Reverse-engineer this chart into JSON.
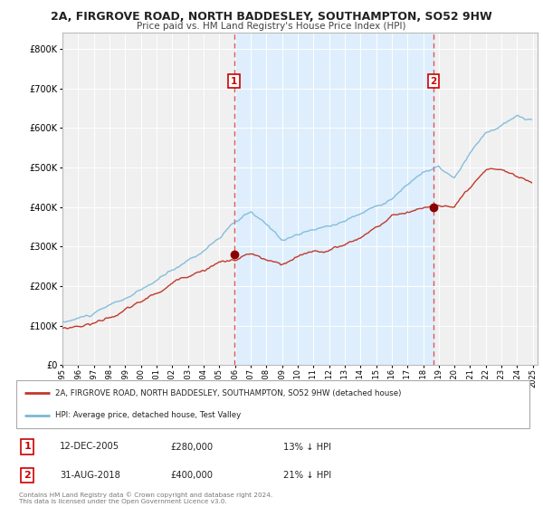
{
  "title": "2A, FIRGROVE ROAD, NORTH BADDESLEY, SOUTHAMPTON, SO52 9HW",
  "subtitle": "Price paid vs. HM Land Registry's House Price Index (HPI)",
  "x_start_year": 1995,
  "x_end_year": 2025,
  "y_ticks": [
    0,
    100000,
    200000,
    300000,
    400000,
    500000,
    600000,
    700000,
    800000
  ],
  "y_labels": [
    "£0",
    "£100K",
    "£200K",
    "£300K",
    "£400K",
    "£500K",
    "£600K",
    "£700K",
    "£800K"
  ],
  "ylim": [
    0,
    840000
  ],
  "hpi_color": "#7ab8d9",
  "price_color": "#c0392b",
  "marker_color": "#8b0000",
  "vline_color": "#e05555",
  "shade_color": "#ddeeff",
  "transaction1_date": 2005.95,
  "transaction1_price": 280000,
  "transaction1_label": "1",
  "transaction2_date": 2018.67,
  "transaction2_price": 400000,
  "transaction2_label": "2",
  "legend_line1": "2A, FIRGROVE ROAD, NORTH BADDESLEY, SOUTHAMPTON, SO52 9HW (detached house)",
  "legend_line2": "HPI: Average price, detached house, Test Valley",
  "info1_num": "1",
  "info1_date": "12-DEC-2005",
  "info1_price": "£280,000",
  "info1_hpi": "13% ↓ HPI",
  "info2_num": "2",
  "info2_date": "31-AUG-2018",
  "info2_price": "£400,000",
  "info2_hpi": "21% ↓ HPI",
  "footer1": "Contains HM Land Registry data © Crown copyright and database right 2024.",
  "footer2": "This data is licensed under the Open Government Licence v3.0.",
  "background_color": "#ffffff",
  "plot_bg_color": "#f0f0f0",
  "hpi_waypoints_x": [
    1995,
    1997,
    2000,
    2002,
    2004,
    2006,
    2007,
    2008,
    2009,
    2010,
    2012,
    2014,
    2016,
    2018,
    2019,
    2020,
    2021,
    2022,
    2023,
    2024,
    2025
  ],
  "hpi_waypoints_y": [
    108000,
    130000,
    185000,
    235000,
    290000,
    360000,
    385000,
    350000,
    315000,
    330000,
    350000,
    385000,
    430000,
    500000,
    510000,
    480000,
    540000,
    590000,
    610000,
    630000,
    620000
  ],
  "price_waypoints_x": [
    1995,
    1997,
    1999,
    2001,
    2003,
    2005,
    2006,
    2007,
    2008,
    2009,
    2010,
    2011,
    2012,
    2013,
    2014,
    2015,
    2016,
    2017,
    2018,
    2019,
    2020,
    2021,
    2022,
    2023,
    2024,
    2025
  ],
  "price_waypoints_y": [
    93000,
    110000,
    145000,
    185000,
    235000,
    275000,
    280000,
    295000,
    275000,
    260000,
    275000,
    290000,
    295000,
    310000,
    330000,
    360000,
    385000,
    400000,
    410000,
    420000,
    415000,
    455000,
    490000,
    495000,
    475000,
    460000
  ]
}
